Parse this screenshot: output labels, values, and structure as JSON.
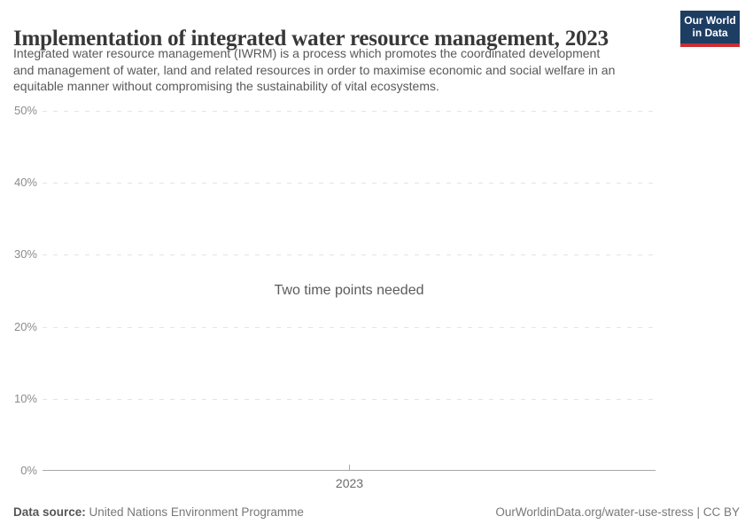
{
  "header": {
    "title": "Implementation of integrated water resource management, 2023",
    "subtitle_lines": [
      "Integrated water resource management (IWRM) is a process which promotes the coordinated development",
      "and management of water, land and related resources in order to maximise economic and social welfare in an",
      "equitable manner without compromising the sustainability of vital ecosystems."
    ],
    "logo": {
      "line1": "Our World",
      "line2": "in Data",
      "bg_color": "#1d3d63",
      "stripe_color": "#cd2d32"
    }
  },
  "chart_data": {
    "type": "line",
    "title": "Implementation of integrated water resource management, 2023",
    "series": [],
    "values": [],
    "message": "Two time points needed",
    "x_tick_labels": [
      "2023"
    ],
    "y_tick_labels": [
      "0%",
      "10%",
      "20%",
      "30%",
      "40%",
      "50%"
    ],
    "ylim": [
      0,
      50
    ],
    "xlabel": "",
    "ylabel": "",
    "grid": "horizontal dashed gridlines, solid baseline at 0%",
    "legend": "none",
    "note": "Empty chart area: no data series plotted; placeholder message shown in centre of plot"
  },
  "colors": {
    "title": "#383838",
    "subtitle": "#595959",
    "axis_labels": "#8c8c8c",
    "gridline": "#e4e4e4",
    "baseline": "#a7a7a7",
    "message": "#5b5b5b",
    "logo_bg": "#1d3d63",
    "logo_stripe": "#cd2d32"
  },
  "footer": {
    "data_source_label": "Data source:",
    "data_source_value": " United Nations Environment Programme",
    "attribution": "OurWorldinData.org/water-use-stress | CC BY"
  }
}
